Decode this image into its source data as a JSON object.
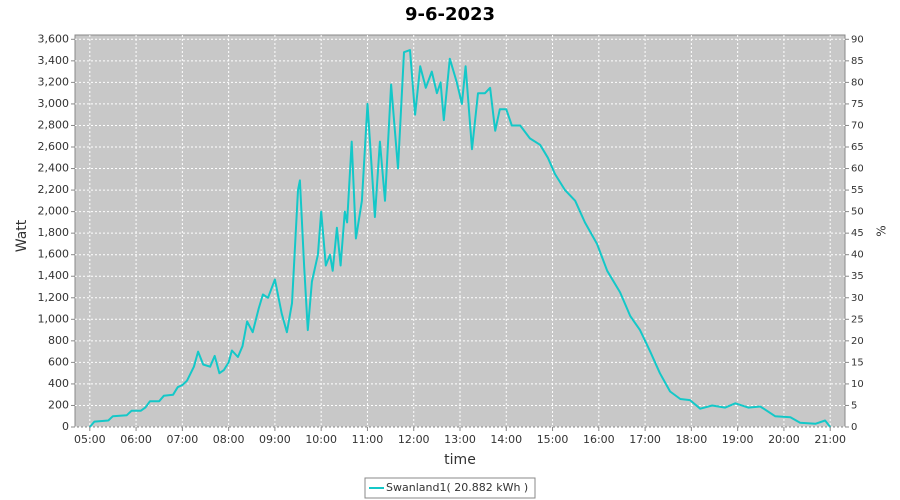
{
  "chart_data": {
    "type": "line",
    "title": "9-6-2023",
    "xlabel": "time",
    "ylabel": "Watt",
    "y2label": "%",
    "x": [
      5.0,
      5.1,
      5.4,
      5.5,
      5.8,
      5.9,
      6.1,
      6.2,
      6.3,
      6.5,
      6.6,
      6.8,
      6.9,
      7.0,
      7.1,
      7.25,
      7.34,
      7.45,
      7.6,
      7.7,
      7.8,
      7.9,
      8.0,
      8.07,
      8.2,
      8.3,
      8.4,
      8.52,
      8.65,
      8.74,
      8.85,
      9.0,
      9.15,
      9.26,
      9.37,
      9.5,
      9.54,
      9.63,
      9.71,
      9.8,
      9.93,
      10.0,
      10.1,
      10.19,
      10.25,
      10.34,
      10.42,
      10.51,
      10.56,
      10.66,
      10.75,
      10.88,
      11.0,
      11.16,
      11.27,
      11.38,
      11.51,
      11.66,
      11.79,
      11.92,
      12.03,
      12.14,
      12.26,
      12.39,
      12.5,
      12.58,
      12.65,
      12.78,
      12.93,
      13.04,
      13.12,
      13.26,
      13.39,
      13.54,
      13.65,
      13.76,
      13.86,
      14.0,
      14.12,
      14.3,
      14.51,
      14.73,
      14.9,
      15.05,
      15.27,
      15.49,
      15.7,
      15.96,
      16.18,
      16.46,
      16.68,
      16.89,
      17.11,
      17.32,
      17.54,
      17.76,
      17.97,
      18.19,
      18.45,
      18.73,
      18.95,
      19.23,
      19.49,
      19.81,
      20.14,
      20.35,
      20.68,
      20.89,
      21.0
    ],
    "series": [
      {
        "name": "Swanland1( 20.882 kWh )",
        "color": "#14c8c8",
        "values": [
          0,
          50,
          60,
          100,
          110,
          150,
          150,
          180,
          240,
          240,
          290,
          300,
          370,
          390,
          430,
          560,
          700,
          580,
          560,
          660,
          500,
          530,
          600,
          710,
          650,
          750,
          980,
          880,
          1100,
          1230,
          1200,
          1370,
          1050,
          880,
          1150,
          2200,
          2290,
          1500,
          900,
          1350,
          1600,
          2000,
          1500,
          1600,
          1450,
          1850,
          1500,
          2000,
          1900,
          2650,
          1750,
          2100,
          3000,
          1950,
          2650,
          2100,
          3180,
          2400,
          3480,
          3500,
          2900,
          3350,
          3150,
          3300,
          3100,
          3200,
          2850,
          3420,
          3200,
          3000,
          3350,
          2580,
          3100,
          3100,
          3150,
          2750,
          2950,
          2950,
          2800,
          2800,
          2680,
          2620,
          2500,
          2350,
          2200,
          2100,
          1900,
          1700,
          1450,
          1250,
          1030,
          900,
          700,
          500,
          330,
          260,
          250,
          170,
          200,
          180,
          220,
          180,
          190,
          100,
          90,
          40,
          30,
          60,
          0
        ]
      }
    ],
    "xlim": [
      4.68,
      21.32
    ],
    "xticks": [
      {
        "value": 5,
        "label": "05:00"
      },
      {
        "value": 6,
        "label": "06:00"
      },
      {
        "value": 7,
        "label": "07:00"
      },
      {
        "value": 8,
        "label": "08:00"
      },
      {
        "value": 9,
        "label": "09:00"
      },
      {
        "value": 10,
        "label": "10:00"
      },
      {
        "value": 11,
        "label": "11:00"
      },
      {
        "value": 12,
        "label": "12:00"
      },
      {
        "value": 13,
        "label": "13:00"
      },
      {
        "value": 14,
        "label": "14:00"
      },
      {
        "value": 15,
        "label": "15:00"
      },
      {
        "value": 16,
        "label": "16:00"
      },
      {
        "value": 17,
        "label": "17:00"
      },
      {
        "value": 18,
        "label": "18:00"
      },
      {
        "value": 19,
        "label": "19:00"
      },
      {
        "value": 20,
        "label": "20:00"
      },
      {
        "value": 21,
        "label": "21:00"
      }
    ],
    "ylim": [
      0,
      3640
    ],
    "yticks": [
      0,
      200,
      400,
      600,
      800,
      {
        "value": 1000,
        "label": "1,000"
      },
      {
        "value": 1200,
        "label": "1,200"
      },
      {
        "value": 1400,
        "label": "1,400"
      },
      {
        "value": 1600,
        "label": "1,600"
      },
      {
        "value": 1800,
        "label": "1,800"
      },
      {
        "value": 2000,
        "label": "2,000"
      },
      {
        "value": 2200,
        "label": "2,200"
      },
      {
        "value": 2400,
        "label": "2,400"
      },
      {
        "value": 2600,
        "label": "2,600"
      },
      {
        "value": 2800,
        "label": "2,800"
      },
      {
        "value": 3000,
        "label": "3,000"
      },
      {
        "value": 3200,
        "label": "3,200"
      },
      {
        "value": 3400,
        "label": "3,400"
      },
      {
        "value": 3600,
        "label": "3,600"
      }
    ],
    "y2lim": [
      0,
      91
    ],
    "y2ticks": [
      0,
      5,
      10,
      15,
      20,
      25,
      30,
      35,
      40,
      45,
      50,
      55,
      60,
      65,
      70,
      75,
      80,
      85,
      90
    ],
    "grid": true
  }
}
